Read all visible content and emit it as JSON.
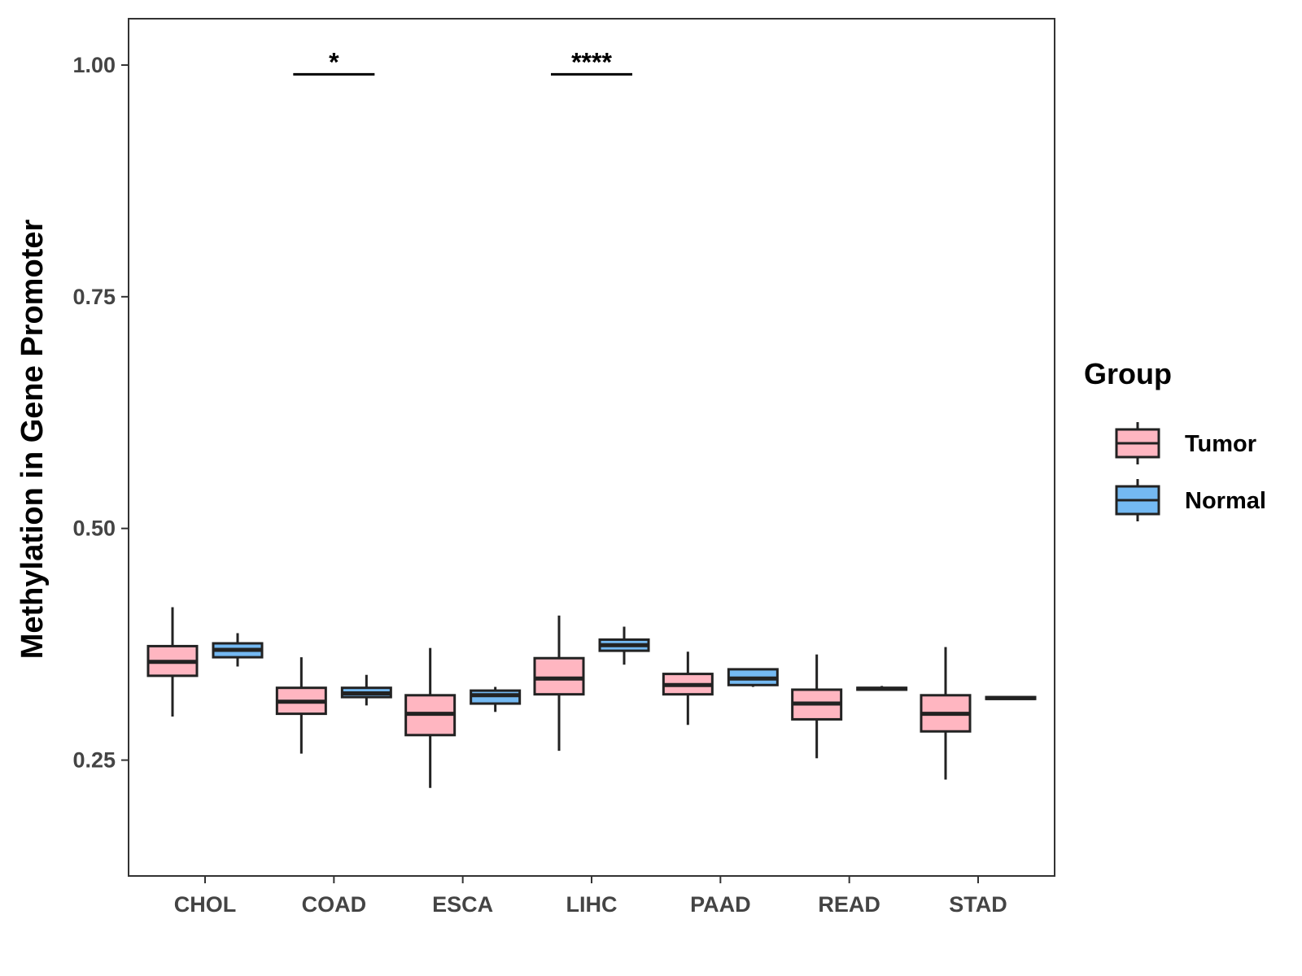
{
  "chart_data": {
    "type": "boxplot",
    "title": "",
    "xlabel": "",
    "ylabel": "Methylation in Gene Promoter",
    "ylim": [
      0.125,
      1.05
    ],
    "yticks": [
      0.25,
      0.5,
      0.75,
      1.0
    ],
    "ytick_labels": [
      "0.25",
      "0.50",
      "0.75",
      "1.00"
    ],
    "grid": false,
    "categories": [
      "CHOL",
      "COAD",
      "ESCA",
      "LIHC",
      "PAAD",
      "READ",
      "STAD"
    ],
    "legend": {
      "title": "Group",
      "position": "right",
      "entries": [
        {
          "name": "Tumor",
          "color": "#FFB6C1"
        },
        {
          "name": "Normal",
          "color": "#74B9F2"
        }
      ]
    },
    "series": [
      {
        "name": "Tumor",
        "color": "#FFB6C1",
        "boxes": [
          {
            "category": "CHOL",
            "min": 0.297,
            "q1": 0.341,
            "median": 0.356,
            "q3": 0.373,
            "max": 0.415
          },
          {
            "category": "COAD",
            "min": 0.257,
            "q1": 0.3,
            "median": 0.313,
            "q3": 0.328,
            "max": 0.361
          },
          {
            "category": "ESCA",
            "min": 0.22,
            "q1": 0.277,
            "median": 0.3,
            "q3": 0.32,
            "max": 0.371
          },
          {
            "category": "LIHC",
            "min": 0.26,
            "q1": 0.321,
            "median": 0.338,
            "q3": 0.36,
            "max": 0.406
          },
          {
            "category": "PAAD",
            "min": 0.288,
            "q1": 0.321,
            "median": 0.331,
            "q3": 0.343,
            "max": 0.367
          },
          {
            "category": "READ",
            "min": 0.252,
            "q1": 0.294,
            "median": 0.311,
            "q3": 0.326,
            "max": 0.364
          },
          {
            "category": "STAD",
            "min": 0.229,
            "q1": 0.281,
            "median": 0.3,
            "q3": 0.32,
            "max": 0.372
          }
        ]
      },
      {
        "name": "Normal",
        "color": "#74B9F2",
        "boxes": [
          {
            "category": "CHOL",
            "min": 0.351,
            "q1": 0.361,
            "median": 0.369,
            "q3": 0.376,
            "max": 0.387
          },
          {
            "category": "COAD",
            "min": 0.309,
            "q1": 0.318,
            "median": 0.322,
            "q3": 0.328,
            "max": 0.342
          },
          {
            "category": "ESCA",
            "min": 0.302,
            "q1": 0.311,
            "median": 0.32,
            "q3": 0.325,
            "max": 0.329
          },
          {
            "category": "LIHC",
            "min": 0.353,
            "q1": 0.368,
            "median": 0.374,
            "q3": 0.38,
            "max": 0.394
          },
          {
            "category": "PAAD",
            "min": 0.329,
            "q1": 0.331,
            "median": 0.338,
            "q3": 0.348,
            "max": 0.349
          },
          {
            "category": "READ",
            "min": 0.325,
            "q1": 0.326,
            "median": 0.327,
            "q3": 0.328,
            "max": 0.33
          },
          {
            "category": "STAD",
            "min": 0.316,
            "q1": 0.316,
            "median": 0.317,
            "q3": 0.318,
            "max": 0.318
          }
        ]
      }
    ],
    "annotations": [
      {
        "category": "COAD",
        "label": "*",
        "y": 0.99
      },
      {
        "category": "LIHC",
        "label": "****",
        "y": 0.99
      }
    ]
  }
}
